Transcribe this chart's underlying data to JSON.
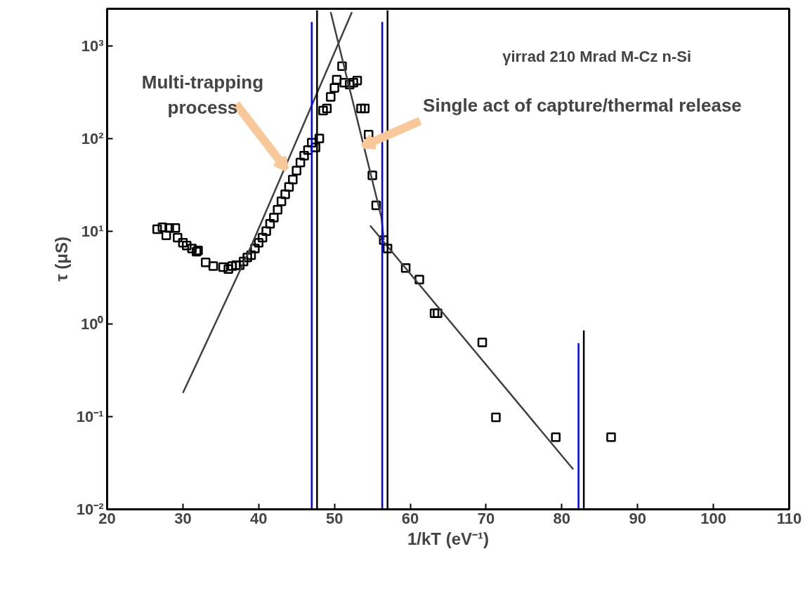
{
  "chart_data": {
    "type": "scatter",
    "xlabel": "1/kT (eV⁻¹)",
    "ylabel": "τ (μS)",
    "log": "y",
    "xlim": [
      20,
      110
    ],
    "ylim": [
      0.01,
      2500
    ],
    "xticks": [
      20,
      30,
      40,
      50,
      60,
      70,
      80,
      90,
      100,
      110
    ],
    "yticks": [
      {
        "value": 0.01,
        "label": "10⁻²"
      },
      {
        "value": 0.1,
        "label": "10⁻¹"
      },
      {
        "value": 1,
        "label": "10⁰"
      },
      {
        "value": 10,
        "label": "10¹"
      },
      {
        "value": 100,
        "label": "10²"
      },
      {
        "value": 1000,
        "label": "10³"
      }
    ],
    "grid": false,
    "series": [
      {
        "marker": "square",
        "color": "#000000",
        "x": [
          26.6,
          27.3,
          28.2,
          29,
          27.8,
          29.3,
          30,
          30.5,
          31.2,
          31.8,
          32,
          33,
          34,
          35.3,
          36,
          36.5,
          37,
          37.5,
          38,
          38.5,
          39,
          39.5,
          40,
          40.5,
          41,
          41.5,
          42,
          42.5,
          43,
          43.5,
          44,
          44.5,
          45,
          45.5,
          46,
          46.5,
          47,
          47.5,
          48,
          48.5,
          49,
          49.5,
          50,
          50.3,
          51,
          51.3,
          52,
          52.5,
          53,
          53.5,
          54,
          54.5,
          55,
          55.5,
          56.5,
          57,
          59.4,
          61.2,
          63.2,
          63.6,
          69.5,
          71.3,
          79.2,
          86.5
        ],
        "values": [
          10.5,
          11,
          10.8,
          10.8,
          9,
          8.5,
          7.5,
          7,
          6.5,
          6,
          6.2,
          4.6,
          4.2,
          4.1,
          3.9,
          4.2,
          4.3,
          4.3,
          4.7,
          5.2,
          5.5,
          6.5,
          7.5,
          8.5,
          10,
          12,
          14,
          17,
          21,
          25,
          30,
          36,
          45,
          55,
          65,
          75,
          90,
          80,
          100,
          200,
          210,
          280,
          350,
          430,
          600,
          400,
          380,
          400,
          420,
          210,
          210,
          110,
          40,
          19,
          8,
          6.5,
          4.0,
          3.0,
          1.3,
          1.3,
          0.63,
          0.098,
          0.06,
          0.06
        ]
      },
      {
        "type": "line",
        "color": "#404040",
        "x": [
          30,
          38.6,
          52.3
        ],
        "values": [
          0.18,
          5.8,
          2300
        ]
      },
      {
        "type": "line",
        "color": "#404040",
        "x": [
          49.5,
          56.2,
          56.5
        ],
        "values": [
          2300,
          14,
          8
        ]
      },
      {
        "type": "line",
        "color": "#404040",
        "x": [
          54.7,
          81.5
        ],
        "values": [
          11.5,
          0.027
        ]
      },
      {
        "type": "line",
        "color": "#0000ff",
        "x": [
          47.0,
          47.0
        ],
        "values": [
          0.01,
          1800
        ]
      },
      {
        "type": "line",
        "color": "#000000",
        "x": [
          47.7,
          47.7
        ],
        "values": [
          0.01,
          2400
        ]
      },
      {
        "type": "line",
        "color": "#0000ff",
        "x": [
          56.3,
          56.3
        ],
        "values": [
          0.01,
          1800
        ]
      },
      {
        "type": "line",
        "color": "#000000",
        "x": [
          57.0,
          57.0
        ],
        "values": [
          0.01,
          2400
        ]
      },
      {
        "type": "line",
        "color": "#0000ff",
        "x": [
          82.2,
          82.2
        ],
        "values": [
          0.01,
          0.62
        ]
      },
      {
        "type": "line",
        "color": "#000000",
        "x": [
          82.9,
          82.9
        ],
        "values": [
          0.01,
          0.85
        ]
      }
    ],
    "annotations": [
      "γirrad 210 Mrad M-Cz n-Si",
      {
        "text": "Multi-trapping\nprocess",
        "x": 43.6,
        "y": 47
      },
      {
        "text": "Single act of capture/thermal release",
        "x": 53.8,
        "y": 83
      }
    ]
  }
}
